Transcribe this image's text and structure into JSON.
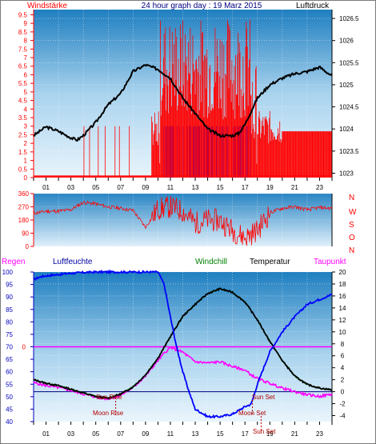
{
  "colors": {
    "wind": "#ff0000",
    "gust": "#0000ff",
    "pressure": "#000000",
    "dir": "#ff0000",
    "humidity": "#0000ff",
    "windchill": "#008000",
    "temperature": "#000000",
    "dewpoint": "#ff00ff",
    "rain": "#ff0000"
  },
  "titles": {
    "graph_title": "24 hour graph day : 19 Marz 2015",
    "left_top": "Windstärke",
    "right_top": "Luftdruck",
    "regen": "Regen",
    "luftfeuchte": "Luftfeuchte",
    "windchill": "Windchill",
    "temperatur": "Temperatur",
    "taupunkt": "Taupunkt",
    "sun_rise": "Sun Rise",
    "moon_rise": "Moon Rise",
    "sun_set": "Sun Set",
    "moon_set": "Moon Set",
    "sun_set2": "Sun Set"
  },
  "compass": [
    "N",
    "W",
    "S",
    "O",
    "N"
  ],
  "chart_data": [
    {
      "type": "line",
      "title": "24 hour graph day : 19 Marz 2015",
      "x_ticks": [
        "01",
        "03",
        "05",
        "07",
        "09",
        "11",
        "13",
        "15",
        "17",
        "19",
        "21",
        "23"
      ],
      "left_ticks": [
        "0",
        "0.5",
        "1",
        "1.5",
        "2",
        "2.5",
        "3",
        "3.5",
        "4",
        "4.5",
        "5",
        "5.5",
        "6",
        "6.5",
        "7",
        "7.5",
        "8",
        "8.5",
        "9",
        "9.5"
      ],
      "right_ticks": [
        "1023",
        "1023.5",
        "1024",
        "1024.5",
        "1025",
        "1025.5",
        "1026",
        "1026.5"
      ],
      "ylim_left": [
        0,
        9.8
      ],
      "ylim_right": [
        1022.9,
        1026.7
      ],
      "pressure": {
        "hours": [
          0,
          1,
          2,
          3,
          3.5,
          4,
          5,
          6,
          7,
          8,
          9,
          10,
          11,
          12,
          13,
          14,
          15,
          16,
          16.5,
          17,
          18,
          19,
          20,
          21,
          22,
          23,
          23.5,
          24
        ],
        "values": [
          1023.85,
          1024.05,
          1023.95,
          1023.8,
          1023.75,
          1023.85,
          1024.15,
          1024.55,
          1024.8,
          1025.3,
          1025.45,
          1025.35,
          1025.15,
          1024.7,
          1024.35,
          1024.0,
          1023.85,
          1023.85,
          1023.9,
          1024.1,
          1024.7,
          1025.0,
          1025.15,
          1025.25,
          1025.3,
          1025.4,
          1025.3,
          1025.2
        ]
      },
      "wind_avg": {
        "segments": [
          {
            "from": 0,
            "to": 9.5,
            "value": 0.1
          },
          {
            "from": 9.5,
            "to": 10.2,
            "value": 2.8
          },
          {
            "from": 10.2,
            "to": 11,
            "value": 5.5
          },
          {
            "from": 11,
            "to": 17.5,
            "value": 5.5
          },
          {
            "from": 17.5,
            "to": 20,
            "value": 2.9
          },
          {
            "from": 20,
            "to": 24,
            "value": 2.7
          }
        ]
      },
      "gust_peak": 9.7,
      "series": [
        {
          "name": "Windstärke",
          "values_hint": "red"
        },
        {
          "name": "Luftdruck",
          "values_hint": "black"
        }
      ]
    },
    {
      "type": "line",
      "ticks": [
        "360",
        "270",
        "180",
        "90",
        "0"
      ],
      "ylim": [
        0,
        360
      ],
      "direction": {
        "hours": [
          0,
          1,
          2,
          3,
          4,
          5,
          6,
          7,
          8,
          9,
          10,
          11,
          12,
          13,
          14,
          15,
          16,
          17,
          18,
          19,
          20,
          21,
          22,
          23,
          24
        ],
        "values": [
          225,
          240,
          240,
          250,
          300,
          290,
          270,
          260,
          245,
          130,
          255,
          270,
          240,
          160,
          180,
          175,
          110,
          60,
          110,
          230,
          260,
          270,
          250,
          265,
          260
        ]
      }
    },
    {
      "type": "line",
      "left_ticks": [
        "40",
        "45",
        "50",
        "55",
        "60",
        "65",
        "70",
        "75",
        "80",
        "85",
        "90",
        "95",
        "100"
      ],
      "right_ticks": [
        "-4",
        "-2",
        "0",
        "2",
        "4",
        "6",
        "8",
        "10",
        "12",
        "14",
        "16",
        "18",
        "20"
      ],
      "ylim_left": [
        40,
        100
      ],
      "ylim_right": [
        -5,
        20
      ],
      "regen_marker": "0",
      "humidity": {
        "hours": [
          0,
          0.5,
          1,
          2,
          3,
          4,
          5,
          6,
          7,
          8,
          9,
          10,
          10.5,
          11,
          11.5,
          12,
          12.5,
          13,
          14,
          15,
          16,
          17,
          17.5,
          18,
          19,
          20,
          21,
          22,
          23,
          24
        ],
        "values": [
          97,
          98,
          98.5,
          99,
          99.5,
          99.8,
          100,
          100,
          100,
          100,
          100,
          100,
          95,
          82,
          70,
          60,
          52,
          45,
          42,
          42,
          43,
          46,
          47,
          55,
          68,
          76,
          82,
          87,
          89,
          91
        ]
      },
      "temperature": {
        "hours": [
          0,
          1,
          2,
          3,
          4,
          5,
          6,
          7,
          8,
          9,
          10,
          11,
          12,
          13,
          14,
          15,
          16,
          17,
          18,
          19,
          20,
          21,
          22,
          23,
          24
        ],
        "values": [
          2.0,
          1.4,
          1.0,
          0.4,
          -0.2,
          -0.8,
          -1.1,
          -0.4,
          0.8,
          2.8,
          5.6,
          9.2,
          12.6,
          14.6,
          16.4,
          17.2,
          16.6,
          15.0,
          12.0,
          8.4,
          5.2,
          2.6,
          1.2,
          0.6,
          0.3
        ]
      },
      "windchill": {
        "hours": [
          0,
          1,
          2,
          3,
          4,
          5,
          6,
          7,
          8,
          9,
          10,
          11,
          12,
          13,
          14,
          15,
          16,
          17,
          18,
          19,
          20,
          21,
          22,
          23,
          24
        ],
        "values": [
          2.0,
          1.4,
          1.0,
          0.4,
          -0.2,
          -0.8,
          -1.1,
          -0.4,
          0.8,
          2.8,
          5.6,
          9.2,
          12.6,
          14.6,
          16.4,
          17.2,
          16.6,
          15.0,
          12.0,
          8.4,
          5.2,
          2.6,
          1.2,
          0.6,
          0.3
        ]
      },
      "dewpoint": {
        "hours": [
          0,
          1,
          2,
          3,
          4,
          5,
          6,
          7,
          8,
          9,
          10,
          10.5,
          11,
          12,
          13,
          14,
          15,
          16,
          17,
          17.5,
          18,
          19,
          20,
          21,
          22,
          23,
          24
        ],
        "values": [
          1.5,
          1.0,
          0.7,
          0.2,
          -0.4,
          -0.9,
          -1.2,
          -0.6,
          0.7,
          2.6,
          5.2,
          6.4,
          7.4,
          6.6,
          5.0,
          4.8,
          5.0,
          4.2,
          3.6,
          2.8,
          2.2,
          1.4,
          0.6,
          0.0,
          -0.5,
          -0.8,
          -0.4
        ]
      }
    }
  ]
}
